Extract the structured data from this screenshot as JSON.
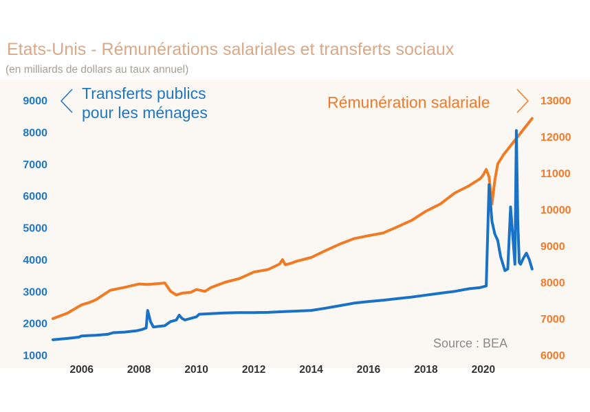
{
  "header": {
    "title": "Etats-Unis - Rémunérations salariales et transferts sociaux",
    "subtitle": "(en milliards de dollars au taux annuel)"
  },
  "colors": {
    "blue": "#1a72c6",
    "orange": "#ef7b24",
    "panel": "#fbf7f3",
    "title": "#d9a887"
  },
  "icons": {
    "left_arrow": "left-chevron-icon",
    "right_arrow": "right-chevron-icon"
  },
  "chart_data": {
    "type": "line",
    "title": "Etats-Unis - Rémunérations salariales et transferts sociaux",
    "subtitle": "(en milliards de dollars au taux annuel)",
    "source": "Source : BEA",
    "x_ticks": [
      "2006",
      "2008",
      "2010",
      "2012",
      "2014",
      "2016",
      "2018",
      "2020"
    ],
    "xlim": [
      2005.0,
      2021.8
    ],
    "y_left": {
      "label": "Transferts publics pour les ménages",
      "label_lines": [
        "Transferts publics",
        "pour les ménages"
      ],
      "ticks": [
        "9000",
        "8000",
        "7000",
        "6000",
        "5000",
        "4000",
        "3000",
        "2000",
        "1000"
      ],
      "ylim": [
        1000,
        9000
      ]
    },
    "y_right": {
      "label": "Rémunération salariale",
      "ticks": [
        "13000",
        "12000",
        "11000",
        "10000",
        "9000",
        "8000",
        "7000",
        "6000"
      ],
      "ylim": [
        6000,
        13000
      ]
    },
    "legend": "top",
    "grid": false,
    "series": [
      {
        "name": "Transferts publics pour les ménages",
        "axis": "left",
        "color": "#1a72c6",
        "x": [
          2005.0,
          2005.5,
          2005.9,
          2006.0,
          2006.5,
          2006.9,
          2007.1,
          2007.5,
          2007.9,
          2008.1,
          2008.25,
          2008.3,
          2008.4,
          2008.5,
          2008.7,
          2008.9,
          2009.1,
          2009.3,
          2009.4,
          2009.5,
          2009.6,
          2009.8,
          2010.0,
          2010.1,
          2010.5,
          2011.0,
          2011.5,
          2012.0,
          2012.5,
          2013.0,
          2013.5,
          2014.0,
          2014.5,
          2015.0,
          2015.5,
          2016.0,
          2016.5,
          2017.0,
          2017.5,
          2018.0,
          2018.5,
          2019.0,
          2019.5,
          2019.9,
          2020.1,
          2020.2,
          2020.3,
          2020.4,
          2020.5,
          2020.6,
          2020.7,
          2020.75,
          2020.85,
          2020.95,
          2021.1,
          2021.15,
          2021.2,
          2021.25,
          2021.3,
          2021.4,
          2021.5,
          2021.6,
          2021.7
        ],
        "values": [
          1480,
          1520,
          1560,
          1600,
          1620,
          1650,
          1700,
          1720,
          1760,
          1800,
          1850,
          2400,
          2050,
          1880,
          1900,
          1920,
          2050,
          2100,
          2250,
          2150,
          2100,
          2150,
          2200,
          2280,
          2300,
          2320,
          2330,
          2330,
          2340,
          2360,
          2380,
          2400,
          2470,
          2550,
          2630,
          2680,
          2720,
          2770,
          2820,
          2880,
          2940,
          3000,
          3080,
          3120,
          3170,
          6350,
          5200,
          4800,
          4600,
          4100,
          3800,
          3650,
          3700,
          5650,
          3850,
          8050,
          5200,
          3900,
          3850,
          4050,
          4200,
          4000,
          3700
        ]
      },
      {
        "name": "Rémunération salariale",
        "axis": "right",
        "color": "#ef7b24",
        "x": [
          2005.0,
          2005.5,
          2006.0,
          2006.3,
          2006.5,
          2007.0,
          2007.5,
          2008.0,
          2008.3,
          2008.5,
          2008.9,
          2009.1,
          2009.3,
          2009.5,
          2009.8,
          2010.0,
          2010.3,
          2010.5,
          2011.0,
          2011.5,
          2012.0,
          2012.5,
          2012.9,
          2013.0,
          2013.1,
          2013.3,
          2013.5,
          2014.0,
          2014.5,
          2015.0,
          2015.5,
          2016.0,
          2016.5,
          2017.0,
          2017.5,
          2018.0,
          2018.5,
          2019.0,
          2019.5,
          2019.9,
          2020.0,
          2020.1,
          2020.2,
          2020.3,
          2020.4,
          2020.5,
          2020.7,
          2021.0,
          2021.2,
          2021.4,
          2021.6,
          2021.7
        ],
        "values": [
          7000,
          7150,
          7380,
          7450,
          7520,
          7780,
          7860,
          7950,
          7940,
          7950,
          7980,
          7750,
          7650,
          7700,
          7720,
          7800,
          7750,
          7850,
          8000,
          8100,
          8280,
          8350,
          8500,
          8620,
          8480,
          8520,
          8580,
          8680,
          8870,
          9050,
          9200,
          9280,
          9350,
          9520,
          9700,
          9950,
          10150,
          10450,
          10650,
          10850,
          10950,
          11100,
          10900,
          10150,
          10800,
          11250,
          11500,
          11800,
          12000,
          12200,
          12400,
          12500
        ]
      }
    ]
  }
}
